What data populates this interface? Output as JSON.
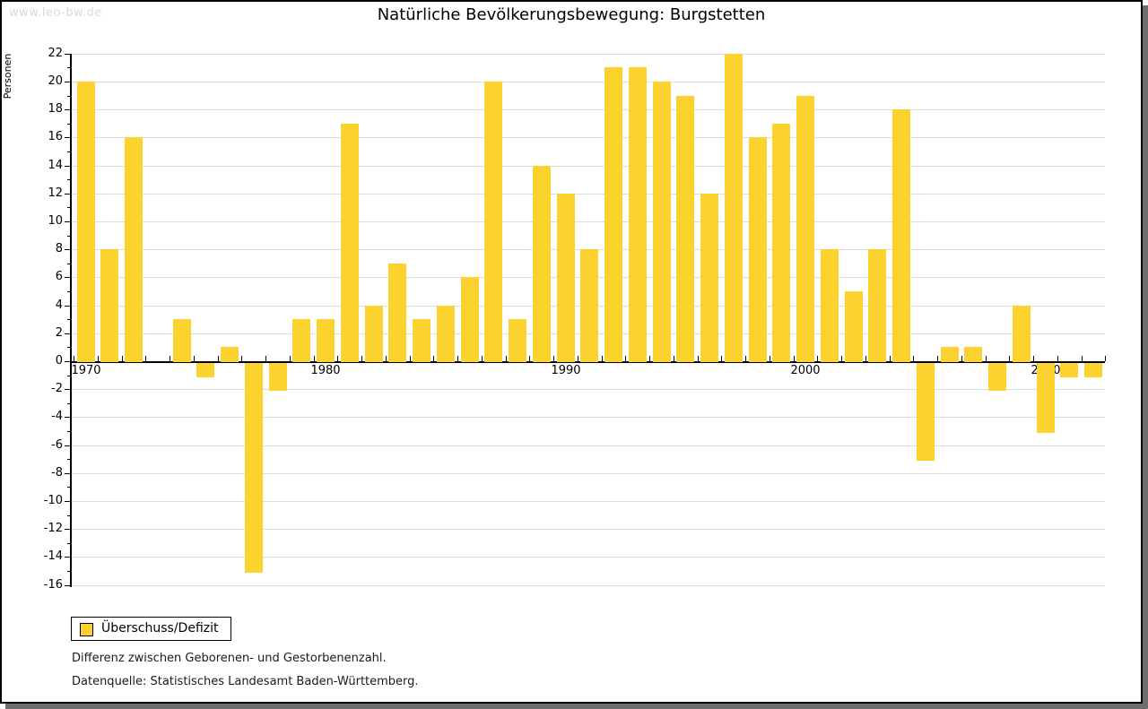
{
  "watermark": "www.leo-bw.de",
  "title": "Natürliche Bevölkerungsbewegung: Burgstetten",
  "legend": {
    "label": "Überschuss/Defizit"
  },
  "footnotes": [
    "Differenz zwischen Geborenen- und Gestorbenenzahl.",
    "Datenquelle: Statistisches Landesamt Baden-Württemberg."
  ],
  "appearance": {
    "bar_color": "#FCD32E",
    "grid_color": "#DDDDDD",
    "shadow_color": "#6E6E6E",
    "watermark_color": "#D9D9D9"
  },
  "chart_data": {
    "type": "bar",
    "title": "Natürliche Bevölkerungsbewegung: Burgstetten",
    "xlabel": "",
    "ylabel": "Personen",
    "series_name": "Überschuss/Defizit",
    "x": [
      1970,
      1971,
      1972,
      1973,
      1974,
      1975,
      1976,
      1977,
      1978,
      1979,
      1980,
      1981,
      1982,
      1983,
      1984,
      1985,
      1986,
      1987,
      1988,
      1989,
      1990,
      1991,
      1992,
      1993,
      1994,
      1995,
      1996,
      1997,
      1998,
      1999,
      2000,
      2001,
      2002,
      2003,
      2004,
      2005,
      2006,
      2007,
      2008,
      2009,
      2010,
      2011,
      2012
    ],
    "values": [
      20,
      8,
      16,
      0,
      3,
      -1,
      1,
      -15,
      -2,
      3,
      3,
      17,
      4,
      7,
      3,
      4,
      6,
      20,
      3,
      14,
      12,
      8,
      21,
      21,
      20,
      19,
      12,
      22,
      16,
      17,
      19,
      8,
      5,
      8,
      18,
      -7,
      1,
      1,
      -2,
      4,
      -5,
      -1,
      -1
    ],
    "ylim": [
      -16,
      22
    ],
    "ytick_step": 2,
    "yminor_step": 1,
    "labeled_x_ticks": [
      1970,
      1980,
      1990,
      2000,
      2010
    ],
    "grid": true,
    "legend_position": "bottom-left"
  }
}
